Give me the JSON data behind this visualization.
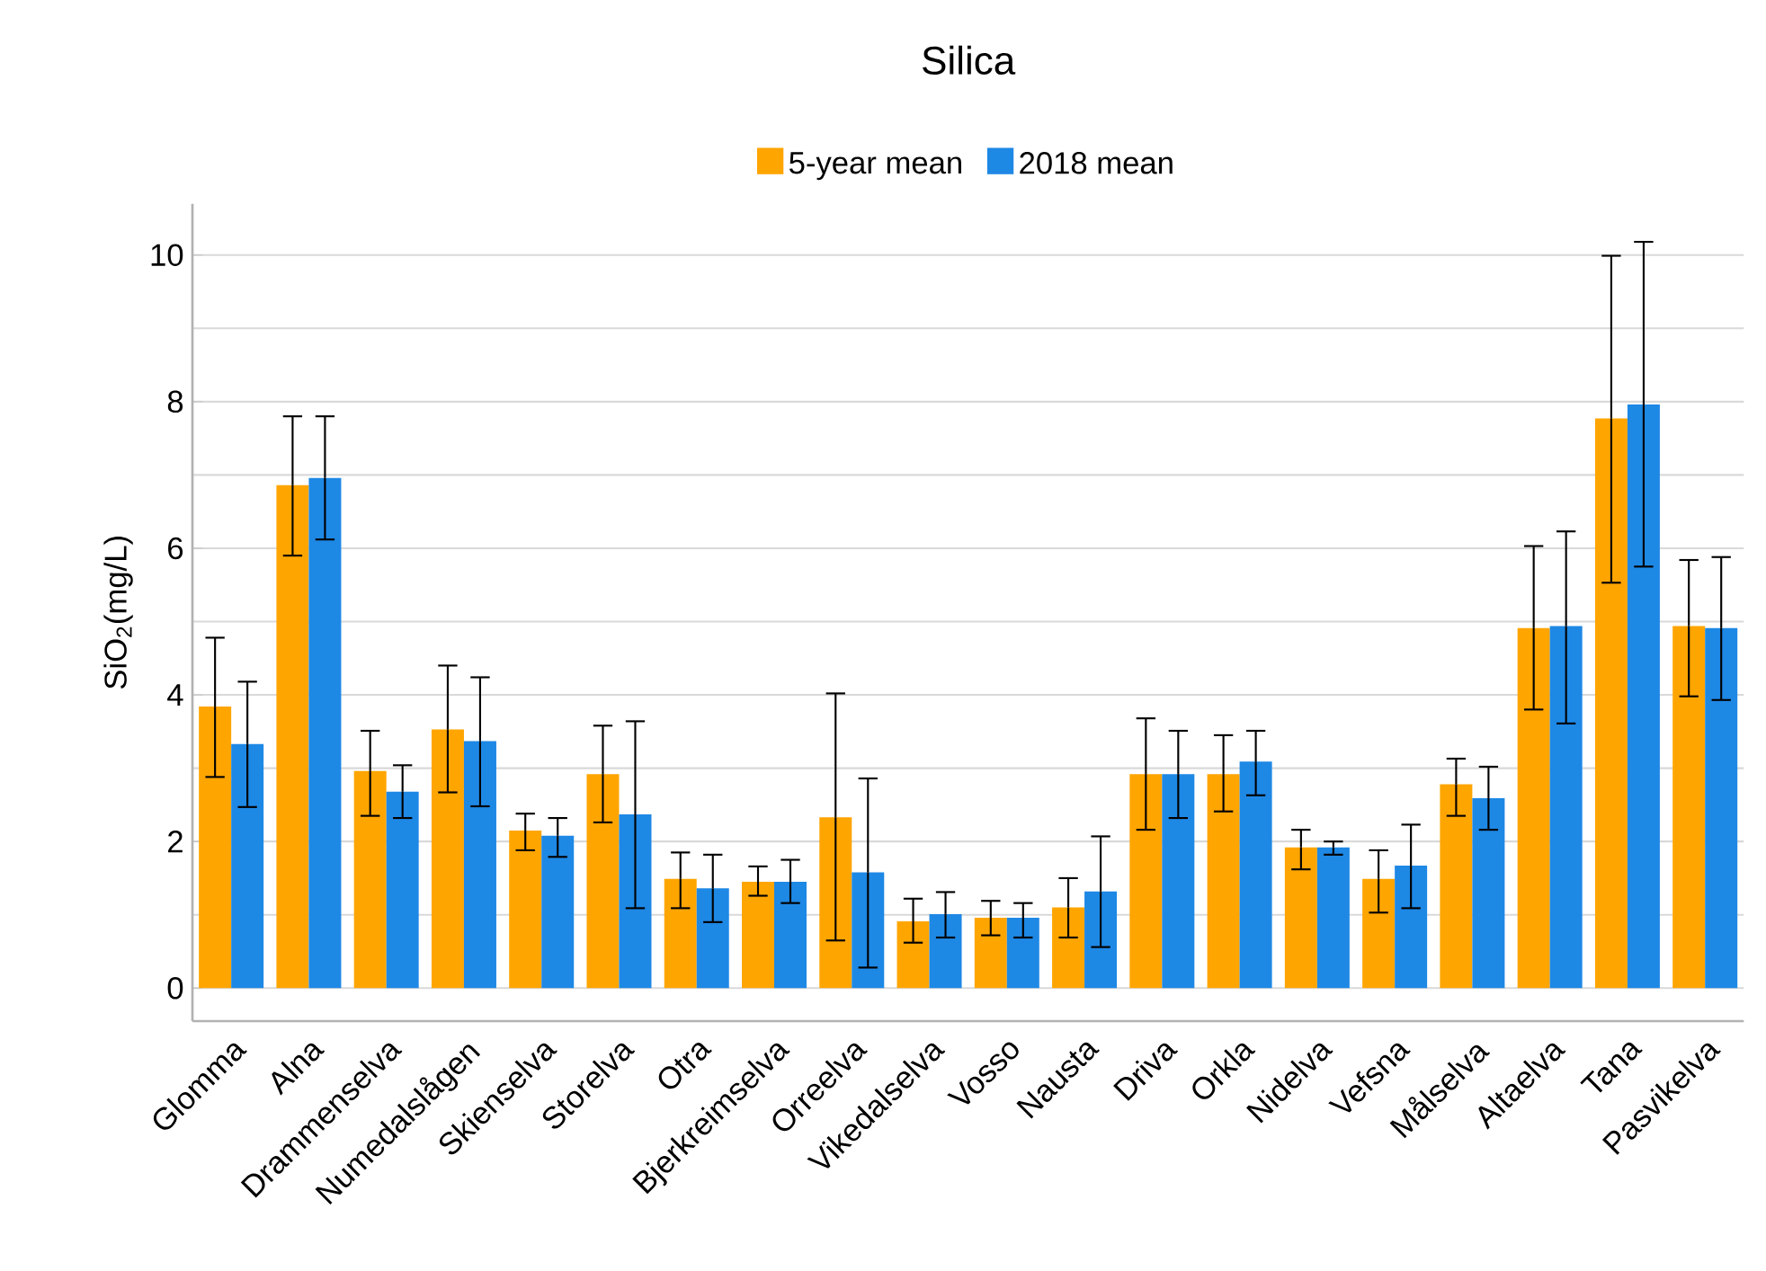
{
  "chart_data": {
    "type": "bar",
    "title": "Silica",
    "ylabel": "SiO$_{2}$(mg/L)",
    "categories": [
      "Glomma",
      "Alna",
      "Drammenselva",
      "Numedalslågen",
      "Skienselva",
      "Storelva",
      "Otra",
      "Bjerkreimselva",
      "Orreelva",
      "Vikedalselva",
      "Vosso",
      "Nausta",
      "Driva",
      "Orkla",
      "Nidelva",
      "Vefsna",
      "Målselva",
      "Altaelva",
      "Tana",
      "Pasvikelva"
    ],
    "series": [
      {
        "name": "5-year mean",
        "color": "#ffa500",
        "values": [
          3.84,
          6.86,
          2.96,
          3.53,
          2.15,
          2.92,
          1.49,
          1.45,
          2.33,
          0.91,
          0.96,
          1.1,
          2.92,
          2.92,
          1.92,
          1.49,
          2.78,
          4.91,
          7.77,
          4.94
        ],
        "errors": [
          [
            2.88,
            4.78
          ],
          [
            5.9,
            7.8
          ],
          [
            2.35,
            3.51
          ],
          [
            2.67,
            4.4
          ],
          [
            1.88,
            2.38
          ],
          [
            2.26,
            3.58
          ],
          [
            1.09,
            1.85
          ],
          [
            1.26,
            1.66
          ],
          [
            0.65,
            4.02
          ],
          [
            0.62,
            1.22
          ],
          [
            0.72,
            1.19
          ],
          [
            0.69,
            1.5
          ],
          [
            2.16,
            3.68
          ],
          [
            2.41,
            3.45
          ],
          [
            1.62,
            2.16
          ],
          [
            1.03,
            1.88
          ],
          [
            2.35,
            3.13
          ],
          [
            3.8,
            6.03
          ],
          [
            5.53,
            9.99
          ],
          [
            3.98,
            5.84
          ]
        ]
      },
      {
        "name": "2018 mean",
        "color": "#1e88e5",
        "values": [
          3.33,
          6.96,
          2.68,
          3.37,
          2.08,
          2.37,
          1.36,
          1.45,
          1.58,
          1.01,
          0.96,
          1.32,
          2.92,
          3.09,
          1.92,
          1.67,
          2.59,
          4.94,
          7.96,
          4.91
        ],
        "errors": [
          [
            2.47,
            4.18
          ],
          [
            6.12,
            7.8
          ],
          [
            2.32,
            3.04
          ],
          [
            2.48,
            4.24
          ],
          [
            1.79,
            2.32
          ],
          [
            1.09,
            3.64
          ],
          [
            0.9,
            1.82
          ],
          [
            1.16,
            1.75
          ],
          [
            0.28,
            2.86
          ],
          [
            0.69,
            1.31
          ],
          [
            0.69,
            1.16
          ],
          [
            0.56,
            2.07
          ],
          [
            2.32,
            3.51
          ],
          [
            2.63,
            3.51
          ],
          [
            1.82,
            2.0
          ],
          [
            1.09,
            2.23
          ],
          [
            2.16,
            3.02
          ],
          [
            3.61,
            6.23
          ],
          [
            5.75,
            10.18
          ],
          [
            3.93,
            5.88
          ]
        ]
      }
    ],
    "ylim": [
      -0.45,
      10.7
    ],
    "yticks": [
      0,
      2,
      4,
      6,
      8,
      10
    ],
    "grid": "y",
    "legend": "top"
  }
}
